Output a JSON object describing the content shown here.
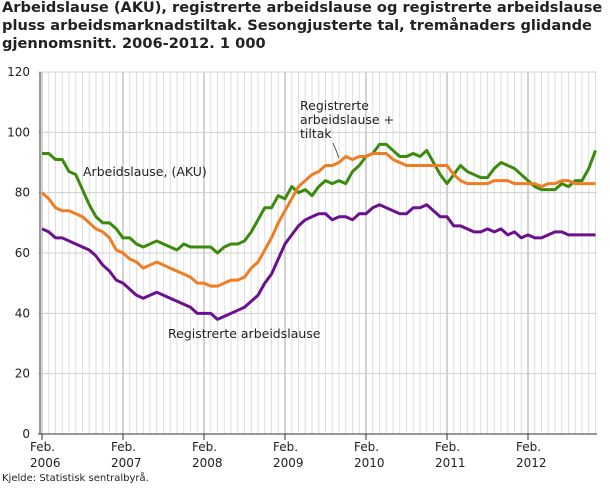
{
  "chart_data": {
    "type": "line",
    "title": "Arbeidslause (AKU), registrerte arbeidslause og registrerte arbeidslause pluss arbeidsmarknadstiltak. Sesongjusterte tal, tremånaders glidande gjennomsnitt. 2006-2012. 1 000",
    "source": "Kjelde: Statistisk sentralbyrå.",
    "x_start": "2006-02",
    "x_step": "month",
    "x_ticks": [
      [
        "Feb.",
        "2006"
      ],
      [
        "Feb.",
        "2007"
      ],
      [
        "Feb.",
        "2008"
      ],
      [
        "Feb.",
        "2009"
      ],
      [
        "Feb.",
        "2010"
      ],
      [
        "Feb.",
        "2011"
      ],
      [
        "Feb.",
        "2012"
      ]
    ],
    "y_ticks": [
      0,
      20,
      40,
      60,
      80,
      100,
      120
    ],
    "ylim": [
      0,
      120
    ],
    "grid": true,
    "series": [
      {
        "name": "Arbeidslause, (AKU)",
        "color": "#3a8a0c",
        "values": [
          93,
          93,
          91,
          91,
          87,
          86,
          81,
          76,
          72,
          70,
          70,
          68,
          65,
          65,
          63,
          62,
          63,
          64,
          63,
          62,
          61,
          63,
          62,
          62,
          62,
          62,
          60,
          62,
          63,
          63,
          64,
          67,
          71,
          75,
          75,
          79,
          78,
          82,
          80,
          81,
          79,
          82,
          84,
          83,
          84,
          83,
          87,
          89,
          92,
          93,
          96,
          96,
          94,
          92,
          92,
          93,
          92,
          94,
          90,
          86,
          83,
          86,
          89,
          87,
          86,
          85,
          85,
          88,
          90,
          89,
          88,
          86,
          84,
          82,
          81,
          81,
          81,
          83,
          82,
          84,
          84,
          88,
          94
        ]
      },
      {
        "name": "Registrerte arbeidslause + tiltak",
        "label_lines": [
          "Registrerte",
          "arbeidslause +",
          "tiltak"
        ],
        "color": "#f07d23",
        "values": [
          80,
          78,
          75,
          74,
          74,
          73,
          72,
          70,
          68,
          67,
          65,
          61,
          60,
          58,
          57,
          55,
          56,
          57,
          56,
          55,
          54,
          53,
          52,
          50,
          50,
          49,
          49,
          50,
          51,
          51,
          52,
          55,
          57,
          61,
          65,
          70,
          74,
          78,
          82,
          84,
          86,
          87,
          89,
          89,
          90,
          92,
          91,
          92,
          92,
          93,
          93,
          93,
          91,
          90,
          89,
          89,
          89,
          89,
          89,
          89,
          89,
          86,
          84,
          83,
          83,
          83,
          83,
          84,
          84,
          84,
          83,
          83,
          83,
          83,
          82,
          83,
          83,
          84,
          84,
          83,
          83,
          83,
          83
        ]
      },
      {
        "name": "Registrerte arbeidslause",
        "color": "#6b1190",
        "values": [
          68,
          67,
          65,
          65,
          64,
          63,
          62,
          61,
          59,
          56,
          54,
          51,
          50,
          48,
          46,
          45,
          46,
          47,
          46,
          45,
          44,
          43,
          42,
          40,
          40,
          40,
          38,
          39,
          40,
          41,
          42,
          44,
          46,
          50,
          53,
          58,
          63,
          66,
          69,
          71,
          72,
          73,
          73,
          71,
          72,
          72,
          71,
          73,
          73,
          75,
          76,
          75,
          74,
          73,
          73,
          75,
          75,
          76,
          74,
          72,
          72,
          69,
          69,
          68,
          67,
          67,
          68,
          67,
          68,
          66,
          67,
          65,
          66,
          65,
          65,
          66,
          67,
          67,
          66,
          66,
          66,
          66,
          66
        ]
      }
    ]
  }
}
